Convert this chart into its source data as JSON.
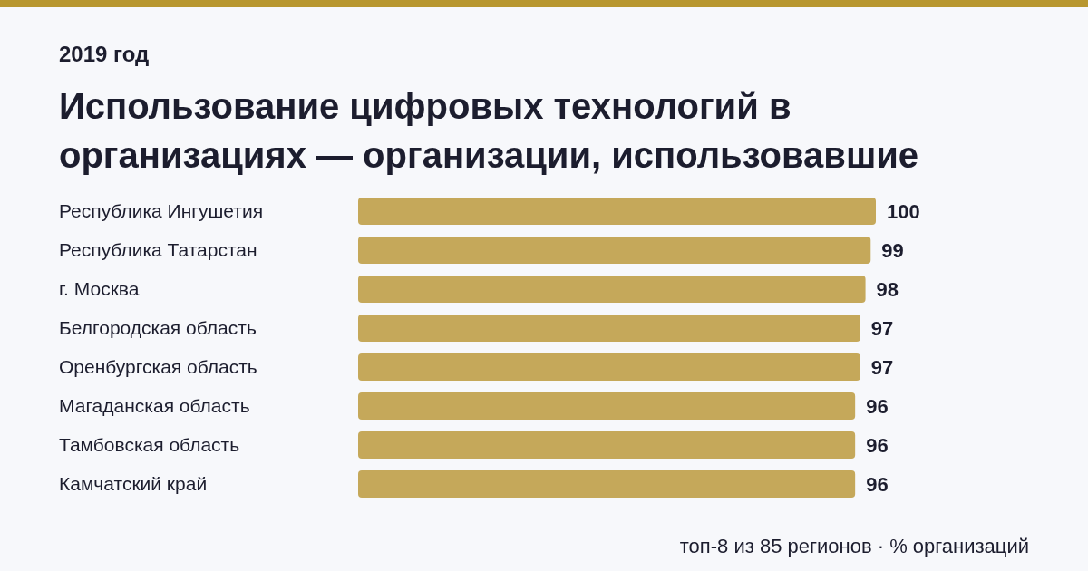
{
  "chart_data": {
    "type": "bar",
    "orientation": "horizontal",
    "title": "Использование цифровых технологий в организациях — организации, использовавшие",
    "subtitle": "2019 год",
    "categories": [
      "Республика Ингушетия",
      "Республика Татарстан",
      "г. Москва",
      "Белгородская область",
      "Оренбургская область",
      "Магаданская область",
      "Тамбовская область",
      "Камчатский край"
    ],
    "values": [
      100,
      99,
      98,
      97,
      97,
      96,
      96,
      96
    ],
    "color": "#c5a85a",
    "data_labels": true,
    "annotations": [
      "топ-8 из 85 регионов · % организаций"
    ]
  }
}
